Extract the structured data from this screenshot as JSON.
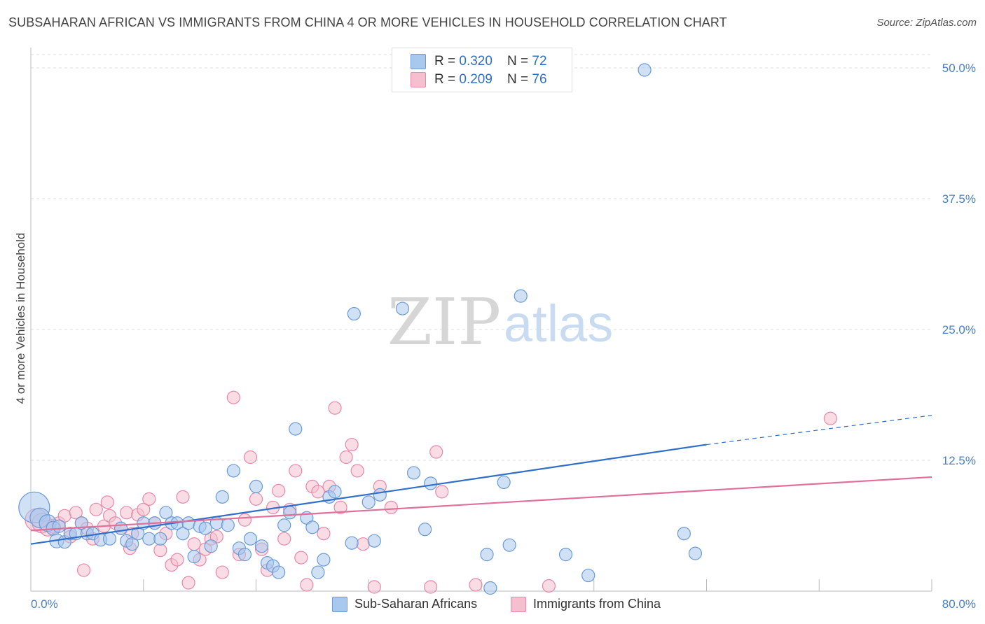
{
  "title": "SUBSAHARAN AFRICAN VS IMMIGRANTS FROM CHINA 4 OR MORE VEHICLES IN HOUSEHOLD CORRELATION CHART",
  "source": "Source: ZipAtlas.com",
  "watermark": {
    "zip": "ZIP",
    "atlas": "atlas"
  },
  "legend": {
    "rows": [
      {
        "r_label": "R = ",
        "r_value": "0.320",
        "n_label": "N = ",
        "n_value": "72"
      },
      {
        "r_label": "R = ",
        "r_value": "0.209",
        "n_label": "N = ",
        "n_value": "76"
      }
    ]
  },
  "bottom_legend": [
    "Sub-Saharan Africans",
    "Immigrants from China"
  ],
  "colors": {
    "blue_fill": "#a9c8ee",
    "blue_stroke": "#6b9ad6",
    "blue_line": "#2f6fc9",
    "pink_fill": "#f6bfd0",
    "pink_stroke": "#e58aa8",
    "pink_line": "#e0709a",
    "grid": "#dddddd",
    "tick_text": "#4a7fc8"
  },
  "chart_data": {
    "type": "scatter",
    "title": "SUBSAHARAN AFRICAN VS IMMIGRANTS FROM CHINA 4 OR MORE VEHICLES IN HOUSEHOLD CORRELATION CHART",
    "xlabel": "",
    "ylabel": "4 or more Vehicles in Household",
    "xlim": [
      0,
      80
    ],
    "ylim": [
      0,
      52
    ],
    "x_tick_labels": [
      "0.0%",
      "80.0%"
    ],
    "y_ticks": [
      12.5,
      25.0,
      37.5,
      50.0
    ],
    "y_tick_labels": [
      "12.5%",
      "25.0%",
      "37.5%",
      "50.0%"
    ],
    "series": [
      {
        "name": "Sub-Saharan Africans",
        "R": 0.32,
        "N": 72,
        "trend": {
          "x0": 0,
          "y0": 4.5,
          "x1": 60,
          "y1": 14.0,
          "dash_to_x": 80,
          "dash_to_y": 16.8
        },
        "points": [
          [
            0.3,
            8.0,
            22
          ],
          [
            0.8,
            7.0,
            14
          ],
          [
            1.5,
            6.5,
            12
          ],
          [
            2.0,
            6.0,
            10
          ],
          [
            2.5,
            6.2,
            9
          ],
          [
            2.3,
            4.8,
            10
          ],
          [
            3.0,
            4.7,
            9
          ],
          [
            3.5,
            5.5,
            9
          ],
          [
            4.0,
            5.5,
            9
          ],
          [
            4.5,
            6.5,
            9
          ],
          [
            5.0,
            5.5,
            9
          ],
          [
            5.5,
            5.5,
            9
          ],
          [
            6.2,
            4.9,
            9
          ],
          [
            7.0,
            5.0,
            9
          ],
          [
            8.0,
            6.0,
            9
          ],
          [
            8.5,
            4.8,
            9
          ],
          [
            9.0,
            4.5,
            9
          ],
          [
            9.5,
            5.5,
            9
          ],
          [
            10.0,
            6.5,
            9
          ],
          [
            10.5,
            5.0,
            9
          ],
          [
            11.0,
            6.5,
            9
          ],
          [
            11.5,
            5.0,
            9
          ],
          [
            12.0,
            7.5,
            9
          ],
          [
            12.5,
            6.5,
            9
          ],
          [
            13.0,
            6.5,
            9
          ],
          [
            13.5,
            5.5,
            9
          ],
          [
            14.0,
            6.5,
            9
          ],
          [
            14.5,
            3.3,
            9
          ],
          [
            15.0,
            6.2,
            9
          ],
          [
            15.5,
            6.0,
            9
          ],
          [
            16.0,
            4.3,
            9
          ],
          [
            16.5,
            6.5,
            9
          ],
          [
            17.0,
            9.0,
            9
          ],
          [
            17.5,
            6.3,
            9
          ],
          [
            18.0,
            11.5,
            9
          ],
          [
            18.5,
            4.1,
            9
          ],
          [
            19.0,
            3.5,
            9
          ],
          [
            19.5,
            5.0,
            9
          ],
          [
            20.0,
            10.0,
            9
          ],
          [
            20.5,
            4.3,
            9
          ],
          [
            21.0,
            2.7,
            9
          ],
          [
            21.5,
            2.4,
            9
          ],
          [
            22.0,
            1.8,
            9
          ],
          [
            22.5,
            6.3,
            9
          ],
          [
            23.0,
            7.5,
            9
          ],
          [
            23.5,
            15.5,
            9
          ],
          [
            24.5,
            7.0,
            9
          ],
          [
            25.0,
            6.1,
            9
          ],
          [
            25.5,
            1.8,
            9
          ],
          [
            26.0,
            3.0,
            9
          ],
          [
            26.5,
            9.0,
            9
          ],
          [
            27.0,
            9.5,
            9
          ],
          [
            28.5,
            4.6,
            9
          ],
          [
            28.7,
            26.5,
            9
          ],
          [
            30.0,
            8.5,
            9
          ],
          [
            30.5,
            4.8,
            9
          ],
          [
            31.0,
            9.2,
            9
          ],
          [
            33.0,
            27.0,
            9
          ],
          [
            34.0,
            11.3,
            9
          ],
          [
            35.0,
            5.9,
            9
          ],
          [
            35.5,
            10.3,
            9
          ],
          [
            40.5,
            3.5,
            9
          ],
          [
            40.8,
            0.3,
            9
          ],
          [
            42.0,
            10.4,
            9
          ],
          [
            42.5,
            4.4,
            9
          ],
          [
            43.5,
            28.2,
            9
          ],
          [
            47.5,
            3.5,
            9
          ],
          [
            49.5,
            1.5,
            9
          ],
          [
            54.5,
            49.8,
            9
          ],
          [
            58.0,
            5.5,
            9
          ],
          [
            59.0,
            3.6,
            9
          ]
        ]
      },
      {
        "name": "Immigrants from China",
        "R": 0.209,
        "N": 76,
        "trend": {
          "x0": 0,
          "y0": 5.8,
          "x1": 80,
          "y1": 10.9
        },
        "points": [
          [
            0.5,
            6.8,
            16
          ],
          [
            1.0,
            6.5,
            14
          ],
          [
            1.5,
            6.0,
            11
          ],
          [
            2.0,
            6.2,
            10
          ],
          [
            2.5,
            6.5,
            9
          ],
          [
            3.0,
            7.2,
            9
          ],
          [
            3.5,
            5.2,
            9
          ],
          [
            4.0,
            7.5,
            9
          ],
          [
            4.5,
            6.5,
            9
          ],
          [
            4.7,
            2.0,
            9
          ],
          [
            5.0,
            6.0,
            9
          ],
          [
            5.5,
            5.0,
            9
          ],
          [
            5.8,
            7.8,
            9
          ],
          [
            6.5,
            6.2,
            9
          ],
          [
            6.8,
            8.5,
            9
          ],
          [
            7.0,
            7.2,
            9
          ],
          [
            7.5,
            6.5,
            9
          ],
          [
            8.0,
            6.0,
            9
          ],
          [
            8.5,
            7.5,
            9
          ],
          [
            8.8,
            4.1,
            9
          ],
          [
            9.0,
            5.5,
            9
          ],
          [
            9.5,
            7.3,
            9
          ],
          [
            10.0,
            7.8,
            9
          ],
          [
            10.5,
            8.8,
            9
          ],
          [
            11.0,
            6.5,
            9
          ],
          [
            11.5,
            3.9,
            9
          ],
          [
            12.0,
            5.5,
            9
          ],
          [
            12.5,
            2.5,
            9
          ],
          [
            13.0,
            3.0,
            9
          ],
          [
            13.5,
            9.0,
            9
          ],
          [
            14.0,
            0.8,
            9
          ],
          [
            14.5,
            4.5,
            9
          ],
          [
            15.0,
            3.0,
            9
          ],
          [
            15.5,
            4.0,
            9
          ],
          [
            16.0,
            5.0,
            9
          ],
          [
            16.5,
            5.2,
            9
          ],
          [
            17.0,
            1.8,
            9
          ],
          [
            18.0,
            18.5,
            9
          ],
          [
            18.5,
            3.5,
            9
          ],
          [
            19.0,
            6.8,
            9
          ],
          [
            19.5,
            12.8,
            9
          ],
          [
            20.0,
            8.8,
            9
          ],
          [
            20.5,
            4.0,
            9
          ],
          [
            21.0,
            2.0,
            9
          ],
          [
            21.5,
            8.0,
            9
          ],
          [
            22.0,
            9.6,
            9
          ],
          [
            22.5,
            5.0,
            9
          ],
          [
            23.0,
            7.8,
            9
          ],
          [
            23.5,
            11.5,
            9
          ],
          [
            24.0,
            3.2,
            9
          ],
          [
            24.5,
            0.6,
            9
          ],
          [
            25.0,
            10.0,
            9
          ],
          [
            25.5,
            9.5,
            9
          ],
          [
            26.0,
            5.5,
            9
          ],
          [
            26.5,
            10.0,
            9
          ],
          [
            27.0,
            17.5,
            9
          ],
          [
            27.5,
            8.0,
            9
          ],
          [
            28.0,
            12.8,
            9
          ],
          [
            28.5,
            14.0,
            9
          ],
          [
            29.0,
            11.5,
            9
          ],
          [
            29.5,
            4.5,
            9
          ],
          [
            30.5,
            0.4,
            9
          ],
          [
            31.0,
            10.0,
            9
          ],
          [
            32.0,
            8.0,
            9
          ],
          [
            35.5,
            0.4,
            9
          ],
          [
            36.0,
            13.3,
            9
          ],
          [
            36.5,
            9.5,
            9
          ],
          [
            39.5,
            0.6,
            9
          ],
          [
            46.0,
            0.5,
            9
          ],
          [
            71.0,
            16.5,
            9
          ]
        ]
      }
    ]
  }
}
